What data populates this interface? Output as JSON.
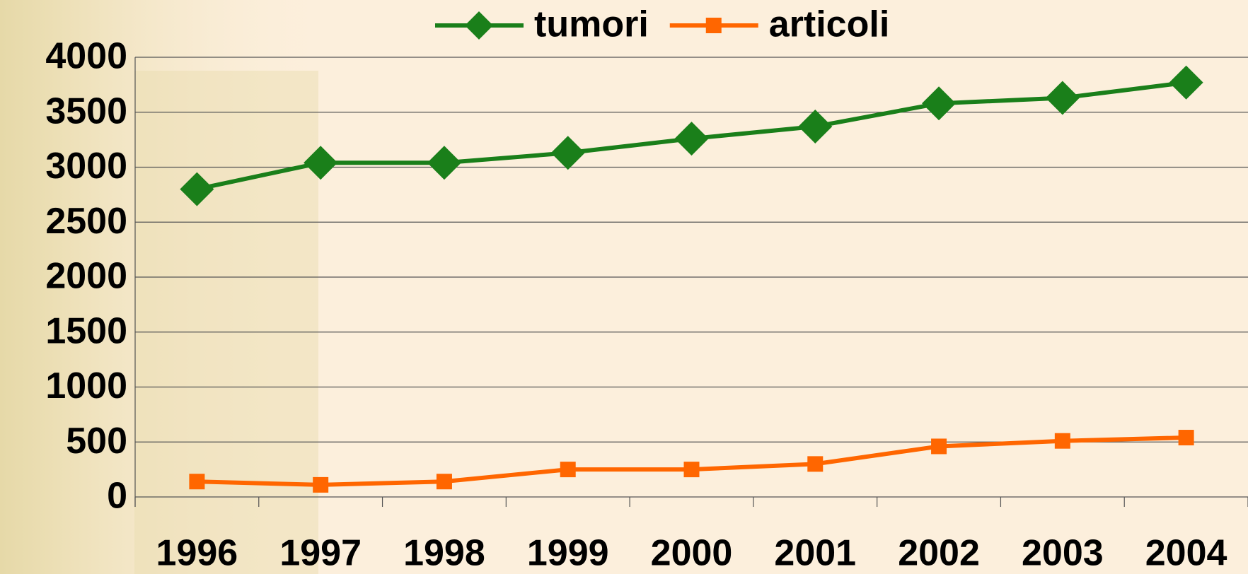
{
  "chart_data": {
    "type": "line",
    "categories": [
      "1996",
      "1997",
      "1998",
      "1999",
      "2000",
      "2001",
      "2002",
      "2003",
      "2004"
    ],
    "series": [
      {
        "name": "tumori",
        "color": "#1a7f1a",
        "marker": "diamond",
        "values": [
          2800,
          3040,
          3040,
          3130,
          3260,
          3370,
          3580,
          3630,
          3770
        ]
      },
      {
        "name": "articoli",
        "color": "#ff6600",
        "marker": "square",
        "values": [
          140,
          110,
          140,
          250,
          250,
          300,
          460,
          510,
          540
        ]
      }
    ],
    "ylim": [
      0,
      4000
    ],
    "yticks": [
      0,
      500,
      1000,
      1500,
      2000,
      2500,
      3000,
      3500,
      4000
    ],
    "grid": true,
    "legend": "top"
  }
}
